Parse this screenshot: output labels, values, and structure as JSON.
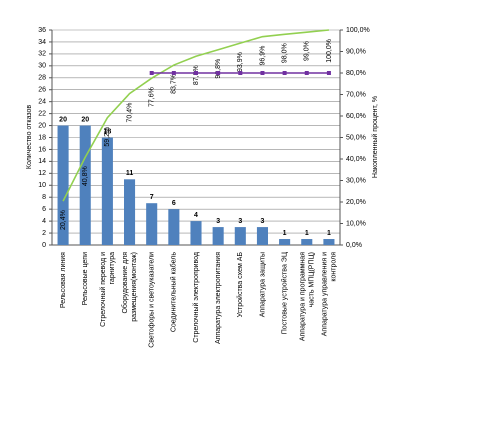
{
  "chart_data": {
    "type": "pareto",
    "categories": [
      "Рельсовая линия",
      "Рельсовые цепи",
      "Стрелочный перевод и гарнитура",
      "Оборудование для размещения(монтаж)",
      "Светофоры и светоуказатели",
      "Соединительный кабель",
      "Стрелочный электропривод",
      "Аппаратура электропитания",
      "Устройства схем АБ",
      "Аппаратура защиты",
      "Постовые устройства ЭЦ",
      "Аппаратура и программная часть МПЦ(РПЦ)",
      "Аппаратура управления и контроля"
    ],
    "series": [
      {
        "name": "Количество отказов",
        "type": "bar",
        "color": "#4f81bd",
        "values": [
          20,
          20,
          18,
          11,
          7,
          6,
          4,
          3,
          3,
          3,
          1,
          1,
          1
        ]
      },
      {
        "name": "Накопленный процент",
        "type": "line",
        "axis": "y2",
        "color": "#92d050",
        "values": [
          20.4,
          40.8,
          59.2,
          70.4,
          77.6,
          83.7,
          87.8,
          90.8,
          93.9,
          96.9,
          98.0,
          99.0,
          100.0
        ],
        "value_labels": [
          "20,4%",
          "40,8%",
          "59,2%",
          "70,4%",
          "77,6%",
          "83,7%",
          "87,8%",
          "90,8%",
          "93,9%",
          "96,9%",
          "98,0%",
          "99,0%",
          "100,0%"
        ]
      },
      {
        "name": "80%",
        "type": "line",
        "axis": "y2",
        "color": "#7030a0",
        "values": [
          null,
          null,
          null,
          null,
          80,
          80,
          80,
          80,
          80,
          80,
          80,
          80,
          80
        ]
      }
    ],
    "ylabel": "Количество отказов",
    "y2label": "Накопленный процент, %",
    "ylim": [
      0,
      36
    ],
    "yticks": [
      0,
      2,
      4,
      6,
      8,
      10,
      12,
      14,
      16,
      18,
      20,
      22,
      24,
      26,
      28,
      30,
      32,
      34,
      36
    ],
    "y2lim": [
      0,
      100
    ],
    "y2ticks": [
      {
        "value": 0,
        "label": "0,0%"
      },
      {
        "value": 10,
        "label": "10,0%"
      },
      {
        "value": 20,
        "label": "20,0%"
      },
      {
        "value": 30,
        "label": "30,0%"
      },
      {
        "value": 40,
        "label": "40,0%"
      },
      {
        "value": 50,
        "label": "50,0%"
      },
      {
        "value": 60,
        "label": "60,0%"
      },
      {
        "value": 70,
        "label": "70,0%"
      },
      {
        "value": 80,
        "label": "80,0%"
      },
      {
        "value": 90,
        "label": "90,0%"
      },
      {
        "value": 100,
        "label": "100,0%"
      }
    ],
    "grid": true
  }
}
